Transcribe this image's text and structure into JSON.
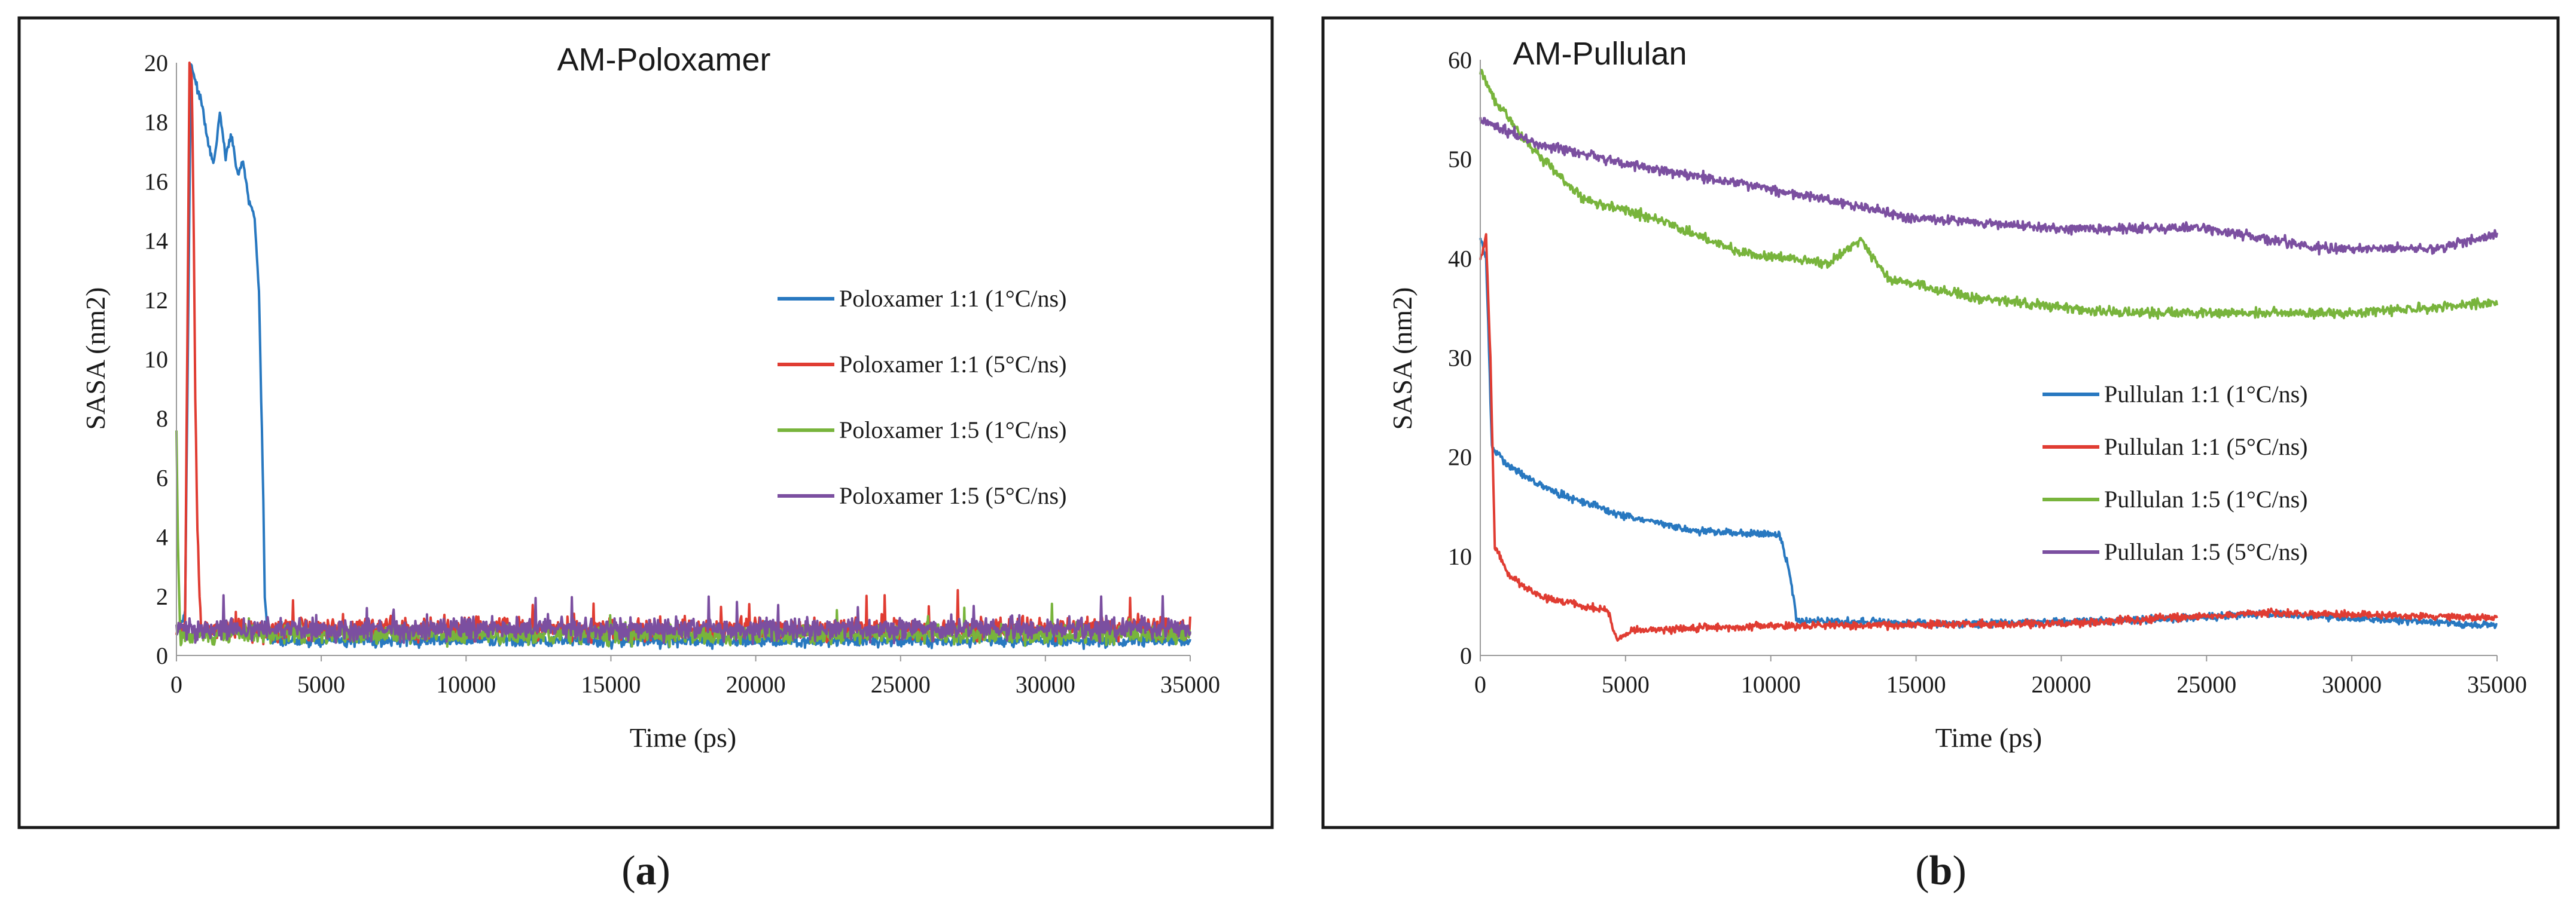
{
  "colors": {
    "blue": "#2878c0",
    "red": "#e03c32",
    "green": "#78b43c",
    "purple": "#7b4fa0"
  },
  "chart_data": [
    {
      "type": "line",
      "panel_caption": "a",
      "title": "AM-Poloxamer",
      "xlabel": "Time (ps)",
      "ylabel": "SASA (nm2)",
      "xlim": [
        0,
        35000
      ],
      "ylim": [
        0,
        20
      ],
      "xticks": [
        0,
        5000,
        10000,
        15000,
        20000,
        25000,
        30000,
        35000
      ],
      "yticks": [
        0,
        2,
        4,
        6,
        8,
        10,
        12,
        14,
        16,
        18,
        20
      ],
      "legend_position": "right",
      "series": [
        {
          "name": "Poloxamer 1:1 (1°C/ns)",
          "color": "blue",
          "points": [
            [
              0,
              0.8
            ],
            [
              300,
              1.5
            ],
            [
              500,
              20
            ],
            [
              700,
              19.2
            ],
            [
              900,
              18.5
            ],
            [
              1100,
              17.2
            ],
            [
              1300,
              16.6
            ],
            [
              1500,
              18.3
            ],
            [
              1700,
              16.8
            ],
            [
              1900,
              17.6
            ],
            [
              2100,
              16.2
            ],
            [
              2300,
              16.7
            ],
            [
              2500,
              15.3
            ],
            [
              2700,
              14.8
            ],
            [
              2850,
              12.2
            ],
            [
              3000,
              5.2
            ],
            [
              3050,
              2.0
            ],
            [
              3150,
              0.7
            ],
            [
              35000,
              0.5
            ]
          ],
          "noise": 0.3,
          "baseline": 0.5,
          "base_from": 3150
        },
        {
          "name": "Poloxamer 1:1 (5°C/ns)",
          "color": "red",
          "points": [
            [
              0,
              0.8
            ],
            [
              300,
              1.1
            ],
            [
              450,
              20
            ],
            [
              530,
              19.5
            ],
            [
              600,
              14.0
            ],
            [
              650,
              8.8
            ],
            [
              720,
              4.4
            ],
            [
              780,
              2.6
            ],
            [
              850,
              0.9
            ],
            [
              35000,
              0.9
            ]
          ],
          "noise": 0.55,
          "baseline": 0.9,
          "base_from": 850
        },
        {
          "name": "Poloxamer 1:5 (1°C/ns)",
          "color": "green",
          "points": [
            [
              0,
              7.6
            ],
            [
              60,
              3.2
            ],
            [
              120,
              1.4
            ],
            [
              35000,
              0.7
            ]
          ],
          "noise": 0.45,
          "baseline": 0.7,
          "base_from": 120
        },
        {
          "name": "Poloxamer 1:5 (5°C/ns)",
          "color": "purple",
          "points": [
            [
              0,
              0.9
            ],
            [
              35000,
              0.9
            ]
          ],
          "noise": 0.55,
          "baseline": 0.9,
          "base_from": 0
        }
      ]
    },
    {
      "type": "line",
      "panel_caption": "b",
      "title": "AM-Pullulan",
      "xlabel": "Time (ps)",
      "ylabel": "SASA (nm2)",
      "xlim": [
        0,
        35000
      ],
      "ylim": [
        0,
        60
      ],
      "xticks": [
        0,
        5000,
        10000,
        15000,
        20000,
        25000,
        30000,
        35000
      ],
      "yticks": [
        0,
        10,
        20,
        30,
        40,
        50,
        60
      ],
      "legend_position": "center-right",
      "series": [
        {
          "name": "Pullulan 1:1 (1°C/ns)",
          "color": "blue",
          "points": [
            [
              0,
              42
            ],
            [
              200,
              40
            ],
            [
              400,
              21
            ],
            [
              1000,
              19
            ],
            [
              2500,
              16.5
            ],
            [
              5000,
              14
            ],
            [
              7500,
              12.5
            ],
            [
              10300,
              12.2
            ],
            [
              10600,
              9
            ],
            [
              10900,
              3.5
            ],
            [
              16000,
              3.2
            ],
            [
              22000,
              3.5
            ],
            [
              27000,
              4.2
            ],
            [
              35000,
              3.0
            ]
          ],
          "noise": 0.9
        },
        {
          "name": "Pullulan 1:1 (5°C/ns)",
          "color": "red",
          "points": [
            [
              0,
              40
            ],
            [
              200,
              42
            ],
            [
              350,
              30
            ],
            [
              500,
              11
            ],
            [
              1000,
              8
            ],
            [
              2000,
              6
            ],
            [
              3500,
              5
            ],
            [
              4400,
              4.5
            ],
            [
              4700,
              1.5
            ],
            [
              5200,
              2.5
            ],
            [
              10000,
              3.0
            ],
            [
              20000,
              3.2
            ],
            [
              27000,
              4.3
            ],
            [
              35000,
              3.8
            ]
          ],
          "noise": 0.9
        },
        {
          "name": "Pullulan 1:5 (1°C/ns)",
          "color": "green",
          "points": [
            [
              0,
              59
            ],
            [
              500,
              56
            ],
            [
              1500,
              52
            ],
            [
              3500,
              46
            ],
            [
              6000,
              44
            ],
            [
              9000,
              40.5
            ],
            [
              12000,
              39.5
            ],
            [
              13100,
              42
            ],
            [
              14000,
              38
            ],
            [
              17000,
              36
            ],
            [
              22000,
              34.5
            ],
            [
              30000,
              34.5
            ],
            [
              35000,
              35.5
            ]
          ],
          "noise": 1.2
        },
        {
          "name": "Pullulan 1:5 (5°C/ns)",
          "color": "purple",
          "points": [
            [
              0,
              54
            ],
            [
              2000,
              51.5
            ],
            [
              5000,
              49.5
            ],
            [
              10000,
              47
            ],
            [
              15000,
              44
            ],
            [
              20000,
              43
            ],
            [
              25000,
              43
            ],
            [
              29000,
              41
            ],
            [
              33000,
              41
            ],
            [
              35000,
              42.5
            ]
          ],
          "noise": 1.2
        }
      ]
    }
  ]
}
